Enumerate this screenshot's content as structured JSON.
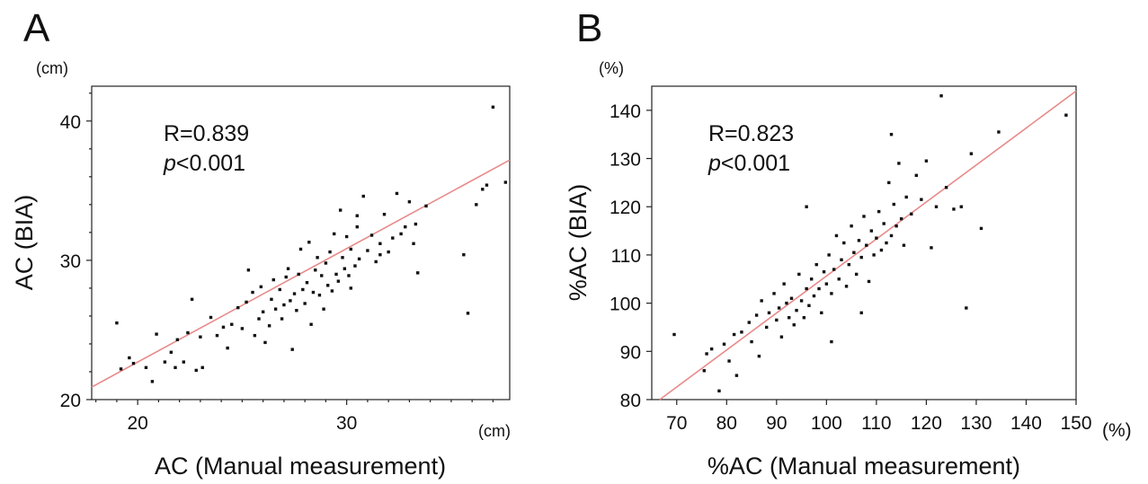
{
  "chart_data": [
    {
      "type": "scatter",
      "panel_label": "A",
      "xlabel": "AC (Manual measurement)",
      "ylabel": "AC  (BIA)",
      "x_unit": "(cm)",
      "y_unit": "(cm)",
      "xlim": [
        17.8,
        37.8
      ],
      "ylim": [
        20,
        42.5
      ],
      "xticks": [
        20,
        30
      ],
      "yticks": [
        20,
        30,
        40
      ],
      "annotation": {
        "r_text": "R=0.839",
        "p_italic": "p",
        "p_rest": "<0.001"
      },
      "fit_line": {
        "x": [
          17.8,
          37.8
        ],
        "y": [
          20.9,
          37.2
        ]
      },
      "grid": false,
      "fit_color": "#e88a8a",
      "point_color": "#111111",
      "points": [
        [
          19.0,
          25.5
        ],
        [
          19.2,
          22.2
        ],
        [
          19.8,
          22.6
        ],
        [
          19.6,
          23.0
        ],
        [
          20.4,
          22.3
        ],
        [
          20.7,
          21.3
        ],
        [
          20.9,
          24.7
        ],
        [
          21.3,
          22.7
        ],
        [
          21.6,
          23.4
        ],
        [
          21.9,
          24.3
        ],
        [
          21.8,
          22.3
        ],
        [
          22.2,
          22.7
        ],
        [
          22.4,
          24.8
        ],
        [
          22.6,
          27.2
        ],
        [
          22.8,
          22.1
        ],
        [
          23.0,
          24.5
        ],
        [
          23.1,
          22.3
        ],
        [
          23.5,
          25.9
        ],
        [
          23.8,
          24.6
        ],
        [
          24.1,
          25.2
        ],
        [
          24.3,
          23.7
        ],
        [
          24.5,
          25.4
        ],
        [
          24.8,
          26.6
        ],
        [
          25.0,
          25.1
        ],
        [
          25.2,
          27.0
        ],
        [
          25.3,
          29.3
        ],
        [
          25.5,
          27.7
        ],
        [
          25.6,
          24.6
        ],
        [
          25.8,
          25.8
        ],
        [
          25.9,
          28.1
        ],
        [
          26.0,
          26.3
        ],
        [
          26.1,
          24.1
        ],
        [
          26.3,
          25.3
        ],
        [
          26.4,
          27.2
        ],
        [
          26.5,
          28.6
        ],
        [
          26.6,
          26.5
        ],
        [
          26.8,
          27.9
        ],
        [
          26.9,
          25.8
        ],
        [
          27.0,
          26.8
        ],
        [
          27.1,
          28.8
        ],
        [
          27.2,
          29.4
        ],
        [
          27.3,
          27.1
        ],
        [
          27.4,
          23.6
        ],
        [
          27.5,
          27.6
        ],
        [
          27.6,
          26.4
        ],
        [
          27.7,
          29.0
        ],
        [
          27.8,
          30.8
        ],
        [
          27.9,
          27.9
        ],
        [
          28.0,
          26.9
        ],
        [
          28.1,
          28.4
        ],
        [
          28.2,
          31.3
        ],
        [
          28.3,
          25.4
        ],
        [
          28.4,
          27.7
        ],
        [
          28.5,
          29.3
        ],
        [
          28.6,
          30.2
        ],
        [
          28.7,
          27.5
        ],
        [
          28.8,
          28.9
        ],
        [
          28.9,
          26.5
        ],
        [
          29.0,
          29.8
        ],
        [
          29.1,
          28.2
        ],
        [
          29.2,
          30.6
        ],
        [
          29.3,
          27.8
        ],
        [
          29.4,
          31.9
        ],
        [
          29.5,
          29.0
        ],
        [
          29.6,
          28.5
        ],
        [
          29.7,
          33.6
        ],
        [
          29.8,
          30.2
        ],
        [
          29.9,
          29.4
        ],
        [
          30.0,
          31.7
        ],
        [
          30.1,
          28.9
        ],
        [
          30.2,
          30.8
        ],
        [
          30.4,
          29.6
        ],
        [
          30.5,
          32.4
        ],
        [
          30.6,
          30.1
        ],
        [
          30.8,
          34.6
        ],
        [
          31.0,
          30.7
        ],
        [
          31.2,
          31.8
        ],
        [
          31.4,
          29.9
        ],
        [
          31.6,
          31.2
        ],
        [
          31.8,
          33.3
        ],
        [
          32.0,
          30.6
        ],
        [
          32.2,
          31.6
        ],
        [
          32.4,
          34.8
        ],
        [
          32.6,
          31.9
        ],
        [
          32.8,
          32.4
        ],
        [
          33.0,
          34.2
        ],
        [
          33.2,
          31.2
        ],
        [
          33.3,
          32.6
        ],
        [
          33.8,
          33.9
        ],
        [
          35.6,
          30.4
        ],
        [
          35.8,
          26.2
        ],
        [
          36.2,
          34.0
        ],
        [
          36.5,
          35.1
        ],
        [
          36.7,
          35.4
        ],
        [
          37.0,
          41.0
        ],
        [
          37.6,
          35.6
        ],
        [
          30.5,
          33.2
        ],
        [
          33.4,
          29.1
        ],
        [
          30.2,
          28.0
        ],
        [
          31.6,
          30.4
        ]
      ]
    },
    {
      "type": "scatter",
      "panel_label": "B",
      "xlabel": "%AC (Manual measurement)",
      "ylabel": "%AC  (BIA)",
      "x_unit": "(%)",
      "y_unit": "(%)",
      "xlim": [
        65,
        150
      ],
      "ylim": [
        80,
        145
      ],
      "xticks": [
        70,
        80,
        90,
        100,
        110,
        120,
        130,
        140,
        150
      ],
      "yticks": [
        80,
        90,
        100,
        110,
        120,
        130,
        140
      ],
      "annotation": {
        "r_text": "R=0.823",
        "p_italic": "p",
        "p_rest": "<0.001"
      },
      "fit_line": {
        "x": [
          66.6,
          150
        ],
        "y": [
          80,
          144
        ]
      },
      "grid": false,
      "fit_color": "#e88a8a",
      "point_color": "#111111",
      "points": [
        [
          69.5,
          93.5
        ],
        [
          75.5,
          86.0
        ],
        [
          76.0,
          89.5
        ],
        [
          77.0,
          90.5
        ],
        [
          78.5,
          81.8
        ],
        [
          79.5,
          91.5
        ],
        [
          80.5,
          88.0
        ],
        [
          81.5,
          93.5
        ],
        [
          82.0,
          85.0
        ],
        [
          83.0,
          94.0
        ],
        [
          84.5,
          96.0
        ],
        [
          85.0,
          92.0
        ],
        [
          86.0,
          97.5
        ],
        [
          86.5,
          89.0
        ],
        [
          87.0,
          100.5
        ],
        [
          88.0,
          95.0
        ],
        [
          88.5,
          98.0
        ],
        [
          89.5,
          102.0
        ],
        [
          90.0,
          96.5
        ],
        [
          90.5,
          99.0
        ],
        [
          91.0,
          93.0
        ],
        [
          91.5,
          104.0
        ],
        [
          92.0,
          100.0
        ],
        [
          92.5,
          97.0
        ],
        [
          93.0,
          101.0
        ],
        [
          93.5,
          95.5
        ],
        [
          94.0,
          98.5
        ],
        [
          94.5,
          106.0
        ],
        [
          95.0,
          100.5
        ],
        [
          95.5,
          97.0
        ],
        [
          96.0,
          103.0
        ],
        [
          96.5,
          99.5
        ],
        [
          97.0,
          105.0
        ],
        [
          97.5,
          101.5
        ],
        [
          98.0,
          108.0
        ],
        [
          98.5,
          103.0
        ],
        [
          99.0,
          98.0
        ],
        [
          99.5,
          106.5
        ],
        [
          100.0,
          104.0
        ],
        [
          100.5,
          110.0
        ],
        [
          101.0,
          102.0
        ],
        [
          101.5,
          107.0
        ],
        [
          102.0,
          114.0
        ],
        [
          102.5,
          105.0
        ],
        [
          103.0,
          109.0
        ],
        [
          103.5,
          112.5
        ],
        [
          104.0,
          103.5
        ],
        [
          104.5,
          108.0
        ],
        [
          105.0,
          116.0
        ],
        [
          105.5,
          110.5
        ],
        [
          106.0,
          106.0
        ],
        [
          106.5,
          113.0
        ],
        [
          107.0,
          109.5
        ],
        [
          107.5,
          118.0
        ],
        [
          108.0,
          112.0
        ],
        [
          108.5,
          104.5
        ],
        [
          109.0,
          115.0
        ],
        [
          109.5,
          110.0
        ],
        [
          110.0,
          113.5
        ],
        [
          110.5,
          119.0
        ],
        [
          111.0,
          111.0
        ],
        [
          111.5,
          116.5
        ],
        [
          112.0,
          112.5
        ],
        [
          112.5,
          125.0
        ],
        [
          113.0,
          114.0
        ],
        [
          113.5,
          120.5
        ],
        [
          114.0,
          116.0
        ],
        [
          114.5,
          129.0
        ],
        [
          115.0,
          117.5
        ],
        [
          115.5,
          112.0
        ],
        [
          116.0,
          122.0
        ],
        [
          117.0,
          118.5
        ],
        [
          118.0,
          126.5
        ],
        [
          119.0,
          121.5
        ],
        [
          120.0,
          129.5
        ],
        [
          121.0,
          111.5
        ],
        [
          122.0,
          120.0
        ],
        [
          123.0,
          143.0
        ],
        [
          124.0,
          124.0
        ],
        [
          125.5,
          119.5
        ],
        [
          127.0,
          120.0
        ],
        [
          128.0,
          99.0
        ],
        [
          129.0,
          131.0
        ],
        [
          131.0,
          115.5
        ],
        [
          134.5,
          135.5
        ],
        [
          148.0,
          139.0
        ],
        [
          113.0,
          135.0
        ],
        [
          107.0,
          98.0
        ],
        [
          101.0,
          92.0
        ],
        [
          96.0,
          120.0
        ]
      ]
    }
  ]
}
